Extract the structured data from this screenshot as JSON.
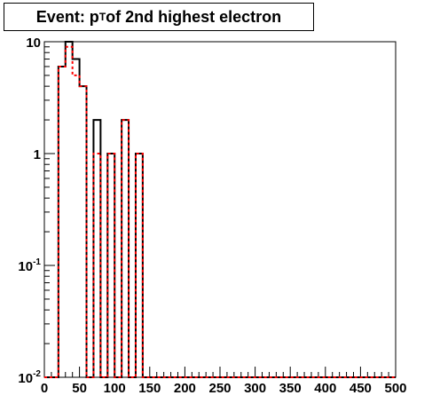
{
  "title": {
    "pre": "Event: p",
    "sub": "T",
    "post": " of 2nd highest electron"
  },
  "chart_data": {
    "type": "histogram",
    "title": "Event: pT of 2nd highest electron",
    "xlabel": "",
    "ylabel": "",
    "xlim": [
      0,
      500
    ],
    "ylim": [
      0.01,
      10
    ],
    "y_scale": "log",
    "bin_width": 10,
    "x_ticks": [
      "0",
      "50",
      "100",
      "150",
      "200",
      "250",
      "300",
      "350",
      "400",
      "450",
      "500"
    ],
    "y_ticks": [
      {
        "value": 0.01,
        "base": "10",
        "exp": "-2"
      },
      {
        "value": 0.1,
        "base": "10",
        "exp": "-1"
      },
      {
        "value": 1,
        "base": "1",
        "exp": ""
      },
      {
        "value": 10,
        "base": "10",
        "exp": ""
      }
    ],
    "series": [
      {
        "color": "#000000",
        "style": "solid",
        "bins": [
          {
            "x": 20,
            "y": 6
          },
          {
            "x": 30,
            "y": 10
          },
          {
            "x": 40,
            "y": 7
          },
          {
            "x": 50,
            "y": 4
          },
          {
            "x": 70,
            "y": 2
          },
          {
            "x": 90,
            "y": 1
          },
          {
            "x": 110,
            "y": 2
          },
          {
            "x": 130,
            "y": 1
          }
        ]
      },
      {
        "color": "#ff0000",
        "style": "dashed",
        "bins": [
          {
            "x": 20,
            "y": 6
          },
          {
            "x": 30,
            "y": 9
          },
          {
            "x": 40,
            "y": 5
          },
          {
            "x": 50,
            "y": 4
          },
          {
            "x": 70,
            "y": 1
          },
          {
            "x": 90,
            "y": 1
          },
          {
            "x": 110,
            "y": 2
          },
          {
            "x": 130,
            "y": 1
          }
        ]
      }
    ]
  }
}
